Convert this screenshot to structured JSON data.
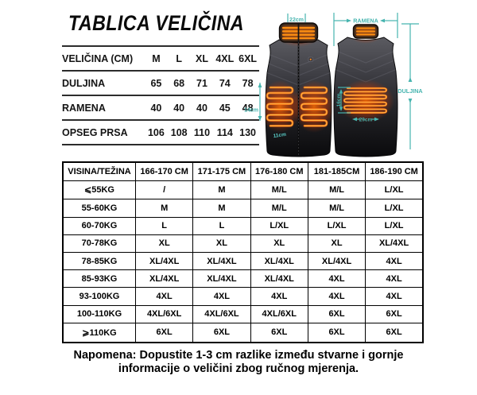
{
  "title": "TABLICA VELIČINA",
  "spec_table": {
    "header": [
      "VELIČINA (CM)",
      "M",
      "L",
      "XL",
      "4XL",
      "6XL"
    ],
    "rows": [
      {
        "label": "DULJINA",
        "values": [
          "65",
          "68",
          "71",
          "74",
          "78"
        ]
      },
      {
        "label": "RAMENA",
        "values": [
          "40",
          "40",
          "40",
          "45",
          "48"
        ]
      },
      {
        "label": "OPSEG PRSA",
        "values": [
          "106",
          "108",
          "110",
          "114",
          "130"
        ]
      }
    ]
  },
  "vest": {
    "collar_width": "22cm",
    "shoulders_label": "RAMENA",
    "length_label": "DULJINA",
    "front_panel_height": "14cm",
    "front_panel_width": "11cm",
    "back_panel_height": "16cm",
    "back_panel_width": "29cm",
    "colors": {
      "annotation": "#46b4af",
      "heating_wire": "#ff9012",
      "heating_glow": "#ff6a00",
      "vest_dark": "#0a0a0c"
    }
  },
  "fit_table": {
    "header": [
      "VISINA/TEŽINA",
      "166-170 CM",
      "171-175 CM",
      "176-180 CM",
      "181-185CM",
      "186-190 CM"
    ],
    "rows": [
      {
        "label": "⩽55KG",
        "values": [
          "/",
          "M",
          "M/L",
          "M/L",
          "L/XL"
        ]
      },
      {
        "label": "55-60KG",
        "values": [
          "M",
          "M",
          "M/L",
          "M/L",
          "L/XL"
        ]
      },
      {
        "label": "60-70KG",
        "values": [
          "L",
          "L",
          "L/XL",
          "L/XL",
          "L/XL"
        ]
      },
      {
        "label": "70-78KG",
        "values": [
          "XL",
          "XL",
          "XL",
          "XL",
          "XL/4XL"
        ]
      },
      {
        "label": "78-85KG",
        "values": [
          "XL/4XL",
          "XL/4XL",
          "XL/4XL",
          "XL/4XL",
          "4XL"
        ]
      },
      {
        "label": "85-93KG",
        "values": [
          "XL/4XL",
          "XL/4XL",
          "XL/4XL",
          "4XL",
          "4XL"
        ]
      },
      {
        "label": "93-100KG",
        "values": [
          "4XL",
          "4XL",
          "4XL",
          "4XL",
          "4XL"
        ]
      },
      {
        "label": "100-110KG",
        "values": [
          "4XL/6XL",
          "4XL/6XL",
          "4XL/6XL",
          "6XL",
          "6XL"
        ]
      },
      {
        "label": "⩾110KG",
        "values": [
          "6XL",
          "6XL",
          "6XL",
          "6XL",
          "6XL"
        ]
      }
    ]
  },
  "note": {
    "line1": "Napomena: Dopustite 1-3 cm razlike između stvarne i gornje",
    "line2": "informacije o veličini zbog ručnog mjerenja."
  }
}
